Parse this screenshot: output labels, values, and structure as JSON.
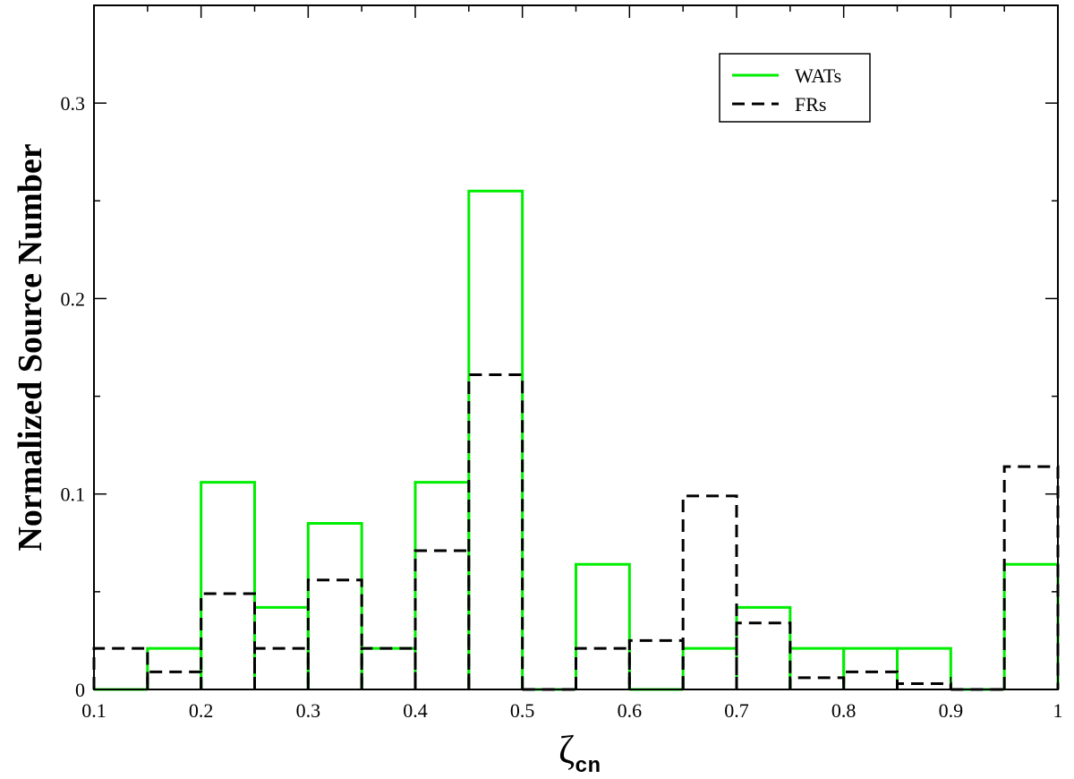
{
  "chart_data": {
    "type": "bar",
    "subtype": "step-histogram",
    "xlabel": "ζ",
    "xlabel_subscript": "cn",
    "ylabel": "Normalized Source Number",
    "xlim": [
      0.1,
      1.0
    ],
    "ylim": [
      0,
      0.35
    ],
    "x_ticks": [
      0.1,
      0.2,
      0.3,
      0.4,
      0.5,
      0.6,
      0.7,
      0.8,
      0.9,
      1.0
    ],
    "x_tick_labels": [
      "0.1",
      "0.2",
      "0.3",
      "0.4",
      "0.5",
      "0.6",
      "0.7",
      "0.8",
      "0.9",
      "1"
    ],
    "y_ticks": [
      0,
      0.1,
      0.2,
      0.3
    ],
    "y_tick_labels": [
      "0",
      "0.1",
      "0.2",
      "0.3"
    ],
    "bin_edges": [
      0.1,
      0.15,
      0.2,
      0.25,
      0.3,
      0.35,
      0.4,
      0.45,
      0.5,
      0.55,
      0.6,
      0.65,
      0.7,
      0.75,
      0.8,
      0.85,
      0.9,
      0.95,
      1.0
    ],
    "grid": false,
    "legend_position": "top-right",
    "series": [
      {
        "name": "WATs",
        "color": "#00ee00",
        "line_style": "solid",
        "values": [
          0.0,
          0.021,
          0.106,
          0.042,
          0.085,
          0.021,
          0.106,
          0.255,
          0.0,
          0.064,
          0.0,
          0.021,
          0.042,
          0.021,
          0.021,
          0.021,
          0.0,
          0.064
        ]
      },
      {
        "name": "FRs",
        "color": "#000000",
        "line_style": "dashed",
        "values": [
          0.021,
          0.009,
          0.049,
          0.021,
          0.056,
          0.021,
          0.071,
          0.161,
          0.0,
          0.021,
          0.025,
          0.099,
          0.034,
          0.006,
          0.009,
          0.003,
          0.0,
          0.114
        ]
      }
    ]
  }
}
